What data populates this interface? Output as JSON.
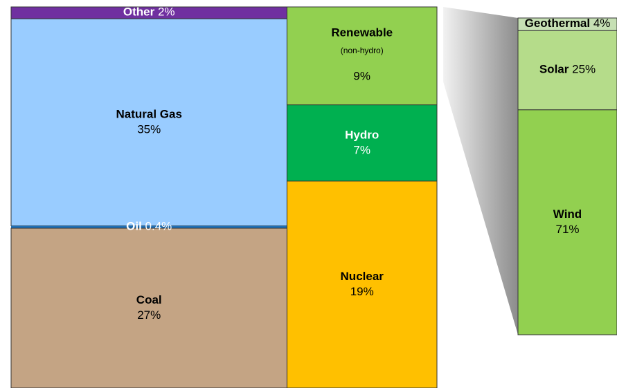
{
  "chart_data": {
    "type": "treemap",
    "columns": [
      {
        "items": [
          {
            "name": "Other",
            "value": 2,
            "value_label": "2%",
            "color": "#7030a0",
            "text_color": "#ffffff",
            "inline": true
          },
          {
            "name": "Natural Gas",
            "value": 35,
            "value_label": "35%",
            "color": "#99ccff",
            "text_color": "#000000"
          },
          {
            "name": "Oil",
            "value": 0.4,
            "value_label": "0.4%",
            "color": "#1f6fb5",
            "text_color": "#ffffff",
            "inline": true
          },
          {
            "name": "Coal",
            "value": 27,
            "value_label": "27%",
            "color": "#c4a484",
            "text_color": "#000000"
          }
        ]
      },
      {
        "items": [
          {
            "name": "Renewable",
            "note": "(non-hydro)",
            "value": 9,
            "value_label": "9%",
            "color": "#92d050",
            "text_color": "#000000"
          },
          {
            "name": "Hydro",
            "value": 7,
            "value_label": "7%",
            "color": "#00b050",
            "text_color": "#ffffff"
          },
          {
            "name": "Nuclear",
            "value": 19,
            "value_label": "19%",
            "color": "#ffc000",
            "text_color": "#000000"
          }
        ]
      }
    ],
    "detail": {
      "items": [
        {
          "name": "Geothermal",
          "value": 4,
          "value_label": "4%",
          "color": "#c6e0b4",
          "text_color": "#000000",
          "inline": true
        },
        {
          "name": "Solar",
          "value": 25,
          "value_label": "25%",
          "color": "#b5dc8a",
          "text_color": "#000000",
          "inline": true
        },
        {
          "name": "Wind",
          "value": 71,
          "value_label": "71%",
          "color": "#92d050",
          "text_color": "#000000"
        }
      ]
    }
  }
}
